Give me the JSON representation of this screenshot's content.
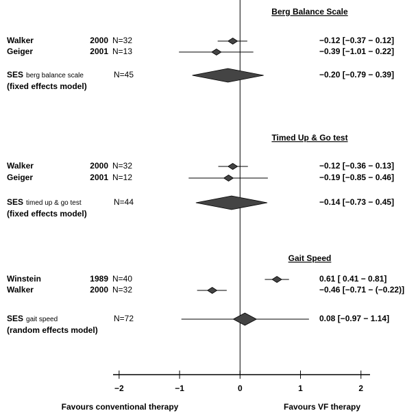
{
  "chart_data": {
    "type": "forest",
    "xlim": [
      -2.1,
      2.15
    ],
    "xticks": [
      {
        "value": -2,
        "label": "−2"
      },
      {
        "value": -1,
        "label": "−1"
      },
      0,
      1,
      2
    ],
    "left_label": "Favours conventional therapy",
    "right_label": "Favours VF therapy",
    "marker_color": "#444444",
    "groups": [
      {
        "title": "Berg Balance Scale",
        "studies": [
          {
            "author": "Walker",
            "year": 2000,
            "n_label": "N=32",
            "estimate": -0.12,
            "lower": -0.37,
            "upper": 0.12,
            "value_label": "−0.12 [−0.37 − 0.12]"
          },
          {
            "author": "Geiger",
            "year": 2001,
            "n_label": "N=13",
            "estimate": -0.39,
            "lower": -1.01,
            "upper": 0.22,
            "value_label": "−0.39 [−1.01 − 0.22]"
          }
        ],
        "pooled": {
          "label": "SES",
          "sublabel": "berg balance scale",
          "n_label": "N=45",
          "model": "(fixed effects model)",
          "style": "diamond",
          "estimate": -0.2,
          "lower": -0.79,
          "upper": 0.39,
          "value_label": "−0.20 [−0.79 − 0.39]"
        }
      },
      {
        "title": "Timed Up & Go test",
        "studies": [
          {
            "author": "Walker",
            "year": 2000,
            "n_label": "N=32",
            "estimate": -0.12,
            "lower": -0.36,
            "upper": 0.13,
            "value_label": "−0.12 [−0.36 − 0.13]"
          },
          {
            "author": "Geiger",
            "year": 2001,
            "n_label": "N=12",
            "estimate": -0.19,
            "lower": -0.85,
            "upper": 0.46,
            "value_label": "−0.19 [−0.85 − 0.46]"
          }
        ],
        "pooled": {
          "label": "SES",
          "sublabel": "timed up & go test",
          "n_label": "N=44",
          "model": "(fixed effects model)",
          "style": "diamond",
          "estimate": -0.14,
          "lower": -0.73,
          "upper": 0.45,
          "value_label": "−0.14 [−0.73 − 0.45]"
        }
      },
      {
        "title": "Gait Speed",
        "studies": [
          {
            "author": "Winstein",
            "year": 1989,
            "n_label": "N=40",
            "estimate": 0.61,
            "lower": 0.41,
            "upper": 0.81,
            "value_label": "0.61 [ 0.41 − 0.81]"
          },
          {
            "author": "Walker",
            "year": 2000,
            "n_label": "N=32",
            "estimate": -0.46,
            "lower": -0.71,
            "upper": -0.22,
            "value_label": "−0.46 [−0.71 − (−0.22)]"
          }
        ],
        "pooled": {
          "label": "SES",
          "sublabel": "gait speed",
          "n_label": "N=72",
          "model": "(random effects model)",
          "style": "whisker",
          "estimate": 0.08,
          "lower": -0.97,
          "upper": 1.14,
          "value_label": "0.08 [−0.97 − 1.14]"
        }
      }
    ]
  }
}
